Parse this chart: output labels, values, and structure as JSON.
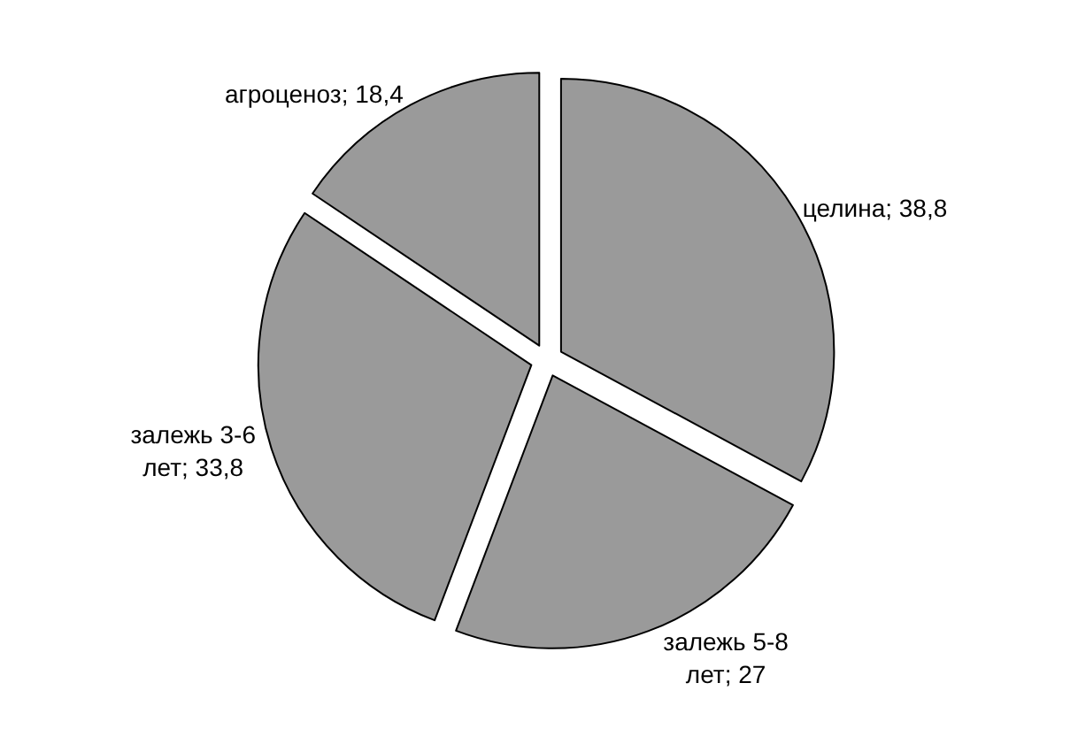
{
  "chart_data": {
    "type": "pie",
    "categories": [
      "целина",
      "залежь 5-8 лет",
      "залежь 3-6 лет",
      "агроценоз"
    ],
    "values": [
      38.8,
      27,
      33.8,
      18.4
    ],
    "value_labels": [
      "38,8",
      "27",
      "33,8",
      "18,4"
    ],
    "colors": [
      "#9a9a9a",
      "#9a9a9a",
      "#9a9a9a",
      "#9a9a9a"
    ],
    "legend": false
  }
}
